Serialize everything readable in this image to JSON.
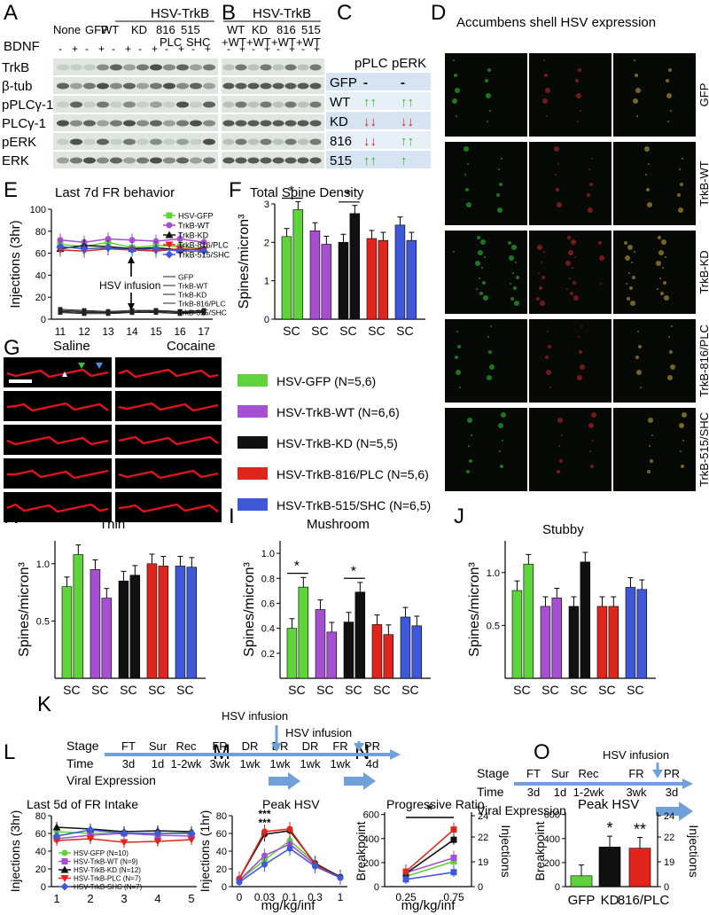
{
  "panel_letters": [
    "A",
    "B",
    "C",
    "D",
    "E",
    "F",
    "G",
    "H",
    "I",
    "J",
    "K",
    "L",
    "M",
    "N",
    "O"
  ],
  "panel_A": {
    "lanes_top": [
      "None",
      "GFP",
      "WT",
      "KD",
      "816",
      "515"
    ],
    "group_label": "HSV-TrkB",
    "sub_labels": [
      "PLC",
      "SHC"
    ],
    "bdnf_label": "BDNF",
    "bdnf_signs": [
      "-",
      "+",
      "-",
      "+",
      "-",
      "+",
      "-",
      "+",
      "-",
      "+",
      "-",
      "+"
    ],
    "blot_rows": [
      "TrkB",
      "β-tub",
      "pPLCγ-1",
      "PLCγ-1",
      "pERK",
      "ERK"
    ]
  },
  "panel_B": {
    "group_label": "HSV-TrkB",
    "lanes_top": [
      "WT",
      "KD",
      "816",
      "515"
    ],
    "lanes_sub": [
      "+WT",
      "+WT",
      "+WT",
      "+WT"
    ],
    "bdnf_signs": [
      "-",
      "+",
      "-",
      "+",
      "-",
      "+",
      "-",
      "+"
    ]
  },
  "panel_C": {
    "col_headers": [
      "pPLC",
      "pERK"
    ],
    "rows": [
      {
        "label": "GFP",
        "plc": "-",
        "erk": "-",
        "plc_color": "#000000",
        "erk_color": "#000000"
      },
      {
        "label": "WT",
        "plc": "↑↑",
        "erk": "↑↑",
        "plc_color": "#2db82d",
        "erk_color": "#2db82d"
      },
      {
        "label": "KD",
        "plc": "↓↓",
        "erk": "↓↓",
        "plc_color": "#d42020",
        "erk_color": "#d42020"
      },
      {
        "label": "816",
        "plc": "↓↓",
        "erk": "↑↑",
        "plc_color": "#d42020",
        "erk_color": "#2db82d"
      },
      {
        "label": "515",
        "plc": "↑↑",
        "erk": "↑",
        "plc_color": "#2db82d",
        "erk_color": "#2db82d"
      }
    ]
  },
  "panel_D": {
    "title": "Accumbens shell HSV expression",
    "row_labels": [
      "GFP",
      "TrkB-WT",
      "TrkB-KD",
      "TrkB-816/PLC",
      "TrkB-515/SHC"
    ]
  },
  "panel_G": {
    "col_labels": [
      "Saline",
      "Cocaine"
    ],
    "legend": [
      {
        "label": "HSV-GFP (N=5,6)",
        "color": "#5fd33a"
      },
      {
        "label": "HSV-TrkB-WT (N=6,6)",
        "color": "#a64fd0"
      },
      {
        "label": "HSV-TrkB-KD (N=5,5)",
        "color": "#111111"
      },
      {
        "label": "HSV-TrkB-816/PLC (N=5,6)",
        "color": "#e0261c"
      },
      {
        "label": "HSV-TrkB-515/SHC (N=6,5)",
        "color": "#3f58d9"
      }
    ]
  },
  "colors": {
    "gfp": "#5fd33a",
    "wt": "#a64fd0",
    "kd": "#111111",
    "plc": "#e0261c",
    "shc": "#3f58d9"
  },
  "chart_data": [
    {
      "id": "E",
      "type": "line",
      "title": "Last 7d FR behavior",
      "ylabel": "Injections (3hr)",
      "xlabel": "",
      "x": [
        11,
        12,
        13,
        14,
        15,
        16,
        17
      ],
      "ylim": [
        0,
        100
      ],
      "yticks": [
        0,
        20,
        40,
        60,
        80,
        100
      ],
      "annotation": "HSV infusion",
      "series": [
        {
          "name": "HSV-GFP",
          "color": "#5fd33a",
          "marker": "square",
          "values": [
            68,
            66,
            70,
            65,
            67,
            66,
            64
          ]
        },
        {
          "name": "TrkB-WT",
          "color": "#a64fd0",
          "marker": "circle",
          "values": [
            72,
            70,
            73,
            72,
            71,
            73,
            70
          ]
        },
        {
          "name": "TrkB-KD",
          "color": "#111111",
          "marker": "triangle",
          "values": [
            64,
            67,
            66,
            64,
            65,
            63,
            64
          ]
        },
        {
          "name": "TrkB-816/PLC",
          "color": "#e0261c",
          "marker": "triangle-down",
          "values": [
            63,
            62,
            64,
            63,
            62,
            64,
            63
          ]
        },
        {
          "name": "TrkB-515/SHC",
          "color": "#3f58d9",
          "marker": "diamond",
          "values": [
            66,
            64,
            65,
            63,
            64,
            62,
            62
          ]
        }
      ],
      "saline_series": [
        {
          "name": "GFP",
          "values": [
            9,
            8,
            7,
            7,
            8,
            7,
            8
          ]
        },
        {
          "name": "TrkB-WT",
          "values": [
            8,
            7,
            7,
            8,
            8,
            7,
            8
          ]
        },
        {
          "name": "TrkB-KD",
          "values": [
            7,
            6,
            6,
            6,
            7,
            6,
            7
          ]
        },
        {
          "name": "TrkB-816/PLC",
          "values": [
            7,
            6,
            6,
            6,
            7,
            6,
            6
          ]
        },
        {
          "name": "TrkB-515/SHC",
          "values": [
            6,
            5,
            5,
            6,
            6,
            5,
            6
          ]
        }
      ]
    },
    {
      "id": "F",
      "type": "bar",
      "title": "Total Spine Density",
      "ylabel": "Spines/micron³",
      "ylim": [
        0,
        3
      ],
      "yticks": [
        0,
        1,
        2,
        3
      ],
      "groups": [
        "SC",
        "SC",
        "SC",
        "SC",
        "SC"
      ],
      "values": [
        [
          2.15,
          2.85
        ],
        [
          2.3,
          1.95
        ],
        [
          2.0,
          2.75
        ],
        [
          2.1,
          2.05
        ],
        [
          2.45,
          2.05
        ]
      ],
      "significance": [
        {
          "group": 0,
          "label": "*"
        },
        {
          "group": 2,
          "label": "*"
        }
      ]
    },
    {
      "id": "H",
      "type": "bar",
      "title": "Thin",
      "ylabel": "Spines/micron³",
      "ylim": [
        0,
        1.2
      ],
      "yticks": [
        0.5,
        1.0
      ],
      "groups": [
        "SC",
        "SC",
        "SC",
        "SC",
        "SC"
      ],
      "values": [
        [
          0.8,
          1.08
        ],
        [
          0.95,
          0.7
        ],
        [
          0.85,
          0.9
        ],
        [
          1.0,
          0.98
        ],
        [
          0.98,
          0.97
        ]
      ]
    },
    {
      "id": "I",
      "type": "bar",
      "title": "Mushroom",
      "ylabel": "Spines/micron³",
      "ylim": [
        0,
        1.1
      ],
      "yticks": [
        0.2,
        0.4,
        0.6,
        0.8,
        1.0
      ],
      "groups": [
        "SC",
        "SC",
        "SC",
        "SC",
        "SC"
      ],
      "values": [
        [
          0.4,
          0.73
        ],
        [
          0.55,
          0.37
        ],
        [
          0.45,
          0.69
        ],
        [
          0.43,
          0.35
        ],
        [
          0.49,
          0.42
        ]
      ],
      "significance": [
        {
          "group": 0,
          "label": "*"
        },
        {
          "group": 2,
          "label": "*"
        }
      ]
    },
    {
      "id": "J",
      "type": "bar",
      "title": "Stubby",
      "ylabel": "Spines/micron³",
      "ylim": [
        0,
        1.3
      ],
      "yticks": [
        0.5,
        1.0
      ],
      "groups": [
        "SC",
        "SC",
        "SC",
        "SC",
        "SC"
      ],
      "values": [
        [
          0.83,
          1.08
        ],
        [
          0.68,
          0.76
        ],
        [
          0.68,
          1.1
        ],
        [
          0.68,
          0.68
        ],
        [
          0.86,
          0.84
        ]
      ]
    },
    {
      "id": "L",
      "type": "line",
      "title": "Last 5d of FR Intake",
      "ylabel": "Injections (3hr)",
      "x": [
        1,
        2,
        3,
        4,
        5
      ],
      "ylim": [
        0,
        80
      ],
      "yticks": [
        0,
        20,
        40,
        60,
        80
      ],
      "series": [
        {
          "name": "HSV-GFP (N=10)",
          "color": "#5fd33a",
          "marker": "circle",
          "values": [
            62,
            60,
            60,
            60,
            61
          ]
        },
        {
          "name": "HSV-TrkB-WT (N=9)",
          "color": "#a64fd0",
          "marker": "square",
          "values": [
            54,
            58,
            60,
            58,
            57
          ]
        },
        {
          "name": "HSV-TrkB-KD (N=12)",
          "color": "#111111",
          "marker": "triangle",
          "values": [
            67,
            65,
            62,
            63,
            62
          ]
        },
        {
          "name": "HSV-TrkB-PLC (N=7)",
          "color": "#e0261c",
          "marker": "triangle-down",
          "values": [
            52,
            54,
            50,
            51,
            53
          ]
        },
        {
          "name": "HSV-TrkB-SHC (N=7)",
          "color": "#3f58d9",
          "marker": "diamond",
          "values": [
            57,
            64,
            60,
            60,
            60
          ]
        }
      ]
    },
    {
      "id": "M",
      "type": "line",
      "title": "Peak HSV",
      "ylabel": "Injections (1hr)",
      "xlabel": "mg/kg/inf",
      "x": [
        "0",
        "0.03",
        "0.1",
        "0.3",
        "1"
      ],
      "ylim": [
        0,
        80
      ],
      "yticks": [
        0,
        20,
        40,
        60,
        80
      ],
      "annotation": "***\n***",
      "series": [
        {
          "name": "GFP",
          "color": "#5fd33a",
          "values": [
            7,
            30,
            52,
            27,
            10
          ]
        },
        {
          "name": "WT",
          "color": "#a64fd0",
          "values": [
            7,
            35,
            48,
            25,
            10
          ]
        },
        {
          "name": "KD",
          "color": "#111111",
          "values": [
            9,
            59,
            63,
            26,
            11
          ]
        },
        {
          "name": "816/PLC",
          "color": "#e0261c",
          "values": [
            9,
            62,
            65,
            25,
            10
          ]
        },
        {
          "name": "515/SHC",
          "color": "#3f58d9",
          "values": [
            5,
            25,
            43,
            23,
            10
          ]
        }
      ]
    },
    {
      "id": "N",
      "type": "line",
      "title": "Progressive Ratio",
      "ylabel": "Breakpoint",
      "y2label": "Injections",
      "xlabel": "mg/kg/inf",
      "x": [
        "0.25",
        "0.75"
      ],
      "ylim": [
        0,
        620
      ],
      "yticks": [
        0,
        200,
        400,
        600
      ],
      "y2ticks": [
        "0",
        "19",
        "22",
        "24"
      ],
      "significance": "*",
      "series": [
        {
          "name": "GFP",
          "color": "#5fd33a",
          "values": [
            85,
            210
          ]
        },
        {
          "name": "WT",
          "color": "#a64fd0",
          "values": [
            115,
            240
          ]
        },
        {
          "name": "KD",
          "color": "#111111",
          "values": [
            110,
            390
          ]
        },
        {
          "name": "816/PLC",
          "color": "#e0261c",
          "values": [
            125,
            475
          ]
        },
        {
          "name": "515/SHC",
          "color": "#3f58d9",
          "values": [
            60,
            120
          ]
        }
      ]
    },
    {
      "id": "O",
      "type": "bar",
      "title": "Peak HSV",
      "ylabel": "Breakpoint",
      "y2label": "Injections",
      "ylim": [
        0,
        620
      ],
      "yticks": [
        0,
        200,
        400,
        600
      ],
      "y2ticks": [
        "0",
        "19",
        "22",
        "24"
      ],
      "categories": [
        "GFP",
        "KD",
        "816/PLC"
      ],
      "values": [
        90,
        330,
        320
      ],
      "bar_colors": [
        "#5fd33a",
        "#111111",
        "#e0261c"
      ],
      "significance": [
        "",
        "*",
        "**"
      ]
    }
  ],
  "panel_K": {
    "row_labels": [
      "Stage",
      "Time",
      "Viral Expression"
    ],
    "left_stages": [
      "FT",
      "Sur",
      "Rec",
      "FR",
      "DR",
      "DR",
      "DR",
      "FR",
      "PR"
    ],
    "left_times": [
      "3d",
      "1d",
      "1-2wk",
      "3wk",
      "1wk",
      "1wk",
      "1wk",
      "1wk",
      "4d"
    ],
    "left_infusions": [
      "HSV infusion",
      "HSV infusion"
    ],
    "right_stages": [
      "FT",
      "Sur",
      "Rec",
      "FR",
      "PR"
    ],
    "right_times": [
      "3d",
      "1d",
      "1-2wk",
      "3wk",
      "3d"
    ],
    "right_infusion": "HSV infusion"
  }
}
